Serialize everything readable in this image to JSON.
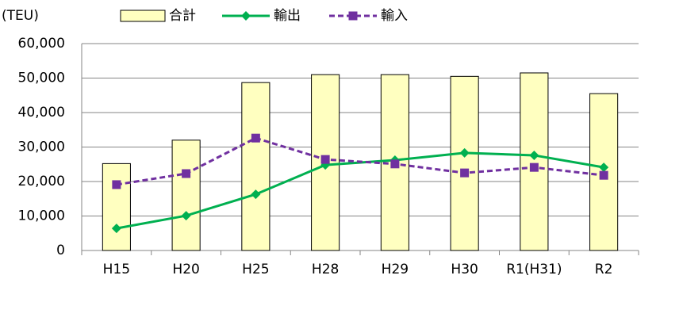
{
  "chart_data": {
    "type": "combo",
    "ylabel": "(TEU)",
    "categories": [
      "H15",
      "H20",
      "H25",
      "H28",
      "H29",
      "H30",
      "R1(H31)",
      "R2"
    ],
    "series": [
      {
        "name": "合計",
        "type": "bar",
        "color": "#ffffc0",
        "values": [
          25200,
          32000,
          48700,
          51000,
          51000,
          50500,
          51500,
          45500
        ]
      },
      {
        "name": "輸出",
        "type": "line",
        "color": "#00b050",
        "marker": "diamond",
        "dashed": false,
        "values": [
          6400,
          10100,
          16300,
          24800,
          26200,
          28300,
          27600,
          24100
        ]
      },
      {
        "name": "輸入",
        "type": "line",
        "color": "#7030a0",
        "marker": "square",
        "dashed": true,
        "values": [
          19100,
          22300,
          32600,
          26400,
          25100,
          22500,
          24100,
          21800
        ]
      }
    ],
    "ylim": [
      0,
      60000
    ],
    "yticks": [
      0,
      {
        "value": 10000,
        "label": "10,000"
      },
      {
        "value": 20000,
        "label": "20,000"
      },
      {
        "value": 30000,
        "label": "30,000"
      },
      {
        "value": 40000,
        "label": "40,000"
      },
      {
        "value": 50000,
        "label": "50,000"
      },
      {
        "value": 60000,
        "label": "60,000"
      }
    ],
    "grid": true,
    "legend": "top"
  }
}
